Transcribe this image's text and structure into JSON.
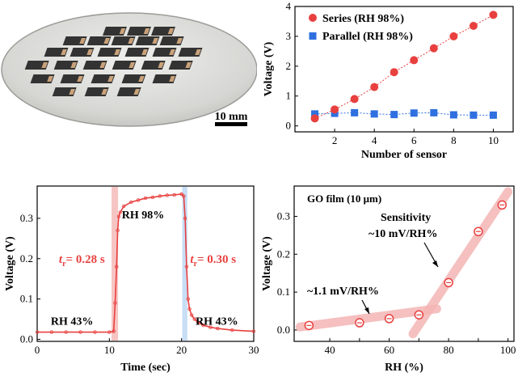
{
  "figure": {
    "panel_a": {
      "scale_bar_label": "10 mm",
      "description_colors": {
        "wafer": "#d9d9d7",
        "chip": "#3a3a3a"
      }
    },
    "colors": {
      "red": "#e8403f",
      "red_fit": "#e8403f",
      "blue": "#2f6fe0",
      "pink_band": "#f4b6b4",
      "blue_band": "#b9d6f2",
      "axis": "#000000"
    }
  },
  "chart_data": [
    {
      "type": "scatter",
      "panel": "b",
      "title": "",
      "xlabel": "Number of sensor",
      "ylabel": "Voltage (V)",
      "xlim": [
        0,
        11
      ],
      "ylim": [
        -0.2,
        4
      ],
      "xticks": [
        2,
        4,
        6,
        8,
        10
      ],
      "yticks": [
        0,
        1,
        2,
        3,
        4
      ],
      "x": [
        1,
        2,
        3,
        4,
        5,
        6,
        7,
        8,
        9,
        10
      ],
      "series": [
        {
          "name": "Series (RH 98%)",
          "marker": "circle",
          "color": "#e8403f",
          "values": [
            0.25,
            0.55,
            0.9,
            1.3,
            1.8,
            2.2,
            2.6,
            3.0,
            3.35,
            3.72
          ]
        },
        {
          "name": "Parallel (RH 98%)",
          "marker": "square",
          "color": "#2f6fe0",
          "values": [
            0.4,
            0.42,
            0.44,
            0.4,
            0.38,
            0.43,
            0.44,
            0.37,
            0.36,
            0.36
          ]
        }
      ],
      "legend": "top-left"
    },
    {
      "type": "line",
      "panel": "c",
      "title": "",
      "xlabel": "Time (sec)",
      "ylabel": "Voltage (V)",
      "xlim": [
        0,
        30
      ],
      "ylim": [
        -0.005,
        0.38
      ],
      "xticks": [
        0,
        10,
        20,
        30
      ],
      "yticks": [
        0.0,
        0.1,
        0.2,
        0.3
      ],
      "x": [
        0,
        2,
        4,
        6,
        8,
        10,
        10.6,
        10.8,
        11.0,
        11.15,
        11.3,
        11.5,
        12,
        13,
        14,
        15,
        16,
        17,
        18,
        19,
        20,
        20.3,
        20.5,
        20.7,
        20.9,
        21.1,
        21.4,
        21.8,
        22.3,
        23,
        24,
        25,
        27,
        30
      ],
      "series": [
        {
          "name": "Voltage",
          "color": "#e8403f",
          "values": [
            0.018,
            0.018,
            0.018,
            0.018,
            0.018,
            0.018,
            0.02,
            0.09,
            0.18,
            0.27,
            0.305,
            0.315,
            0.33,
            0.34,
            0.345,
            0.35,
            0.352,
            0.355,
            0.357,
            0.358,
            0.36,
            0.355,
            0.3,
            0.18,
            0.1,
            0.075,
            0.06,
            0.05,
            0.042,
            0.035,
            0.03,
            0.027,
            0.023,
            0.02
          ]
        }
      ],
      "bands": [
        {
          "x0": 10.3,
          "x1": 11.2,
          "color": "#f4b6b4"
        },
        {
          "x0": 20.1,
          "x1": 20.8,
          "color": "#b9d6f2"
        }
      ],
      "annotations": [
        {
          "text": "RH 98%",
          "x": 11.5,
          "y": 0.3
        },
        {
          "text": "RH 43%",
          "x": 1,
          "y": 0.04
        },
        {
          "text": "RH 43%",
          "x": 21.5,
          "y": 0.04
        },
        {
          "t_symbol": "t",
          "subscript": "r",
          "value_text": "= 0.28 s",
          "x": 1,
          "y": 0.19
        },
        {
          "t_symbol": "t",
          "subscript": "r",
          "value_text": "= 0.30 s",
          "x": 21.2,
          "y": 0.19
        }
      ]
    },
    {
      "type": "scatter",
      "panel": "d",
      "title": "GO film (10 μm)",
      "xlabel": "RH (%)",
      "ylabel": "Voltage (V)",
      "xlim": [
        28,
        102
      ],
      "ylim": [
        -0.03,
        0.38
      ],
      "xticks": [
        40,
        50,
        60,
        70,
        80,
        90,
        100
      ],
      "xtick_labels": [
        "40",
        "",
        "60",
        "",
        "80",
        "",
        "100"
      ],
      "yticks": [
        0.0,
        0.1,
        0.2,
        0.3
      ],
      "x": [
        33,
        50,
        60,
        70,
        80,
        90,
        98
      ],
      "series": [
        {
          "name": "GO film",
          "marker": "open-circle-errorbar",
          "color": "#e8403f",
          "values": [
            0.012,
            0.019,
            0.03,
            0.04,
            0.125,
            0.26,
            0.33
          ]
        }
      ],
      "fit_bands": [
        {
          "x": [
            30,
            76
          ],
          "y": [
            0.008,
            0.056
          ],
          "color": "#f4b6b4"
        },
        {
          "x": [
            68,
            100
          ],
          "y": [
            -0.01,
            0.365
          ],
          "color": "#f4b6b4"
        }
      ],
      "annotations": [
        {
          "text": "Sensitivity",
          "x": 73,
          "y": 0.285
        },
        {
          "text": "~10 mV/RH%",
          "x": 71,
          "y": 0.245
        },
        {
          "text": "~1.1 mV/RH%",
          "x": 37,
          "y": 0.11
        }
      ]
    }
  ]
}
